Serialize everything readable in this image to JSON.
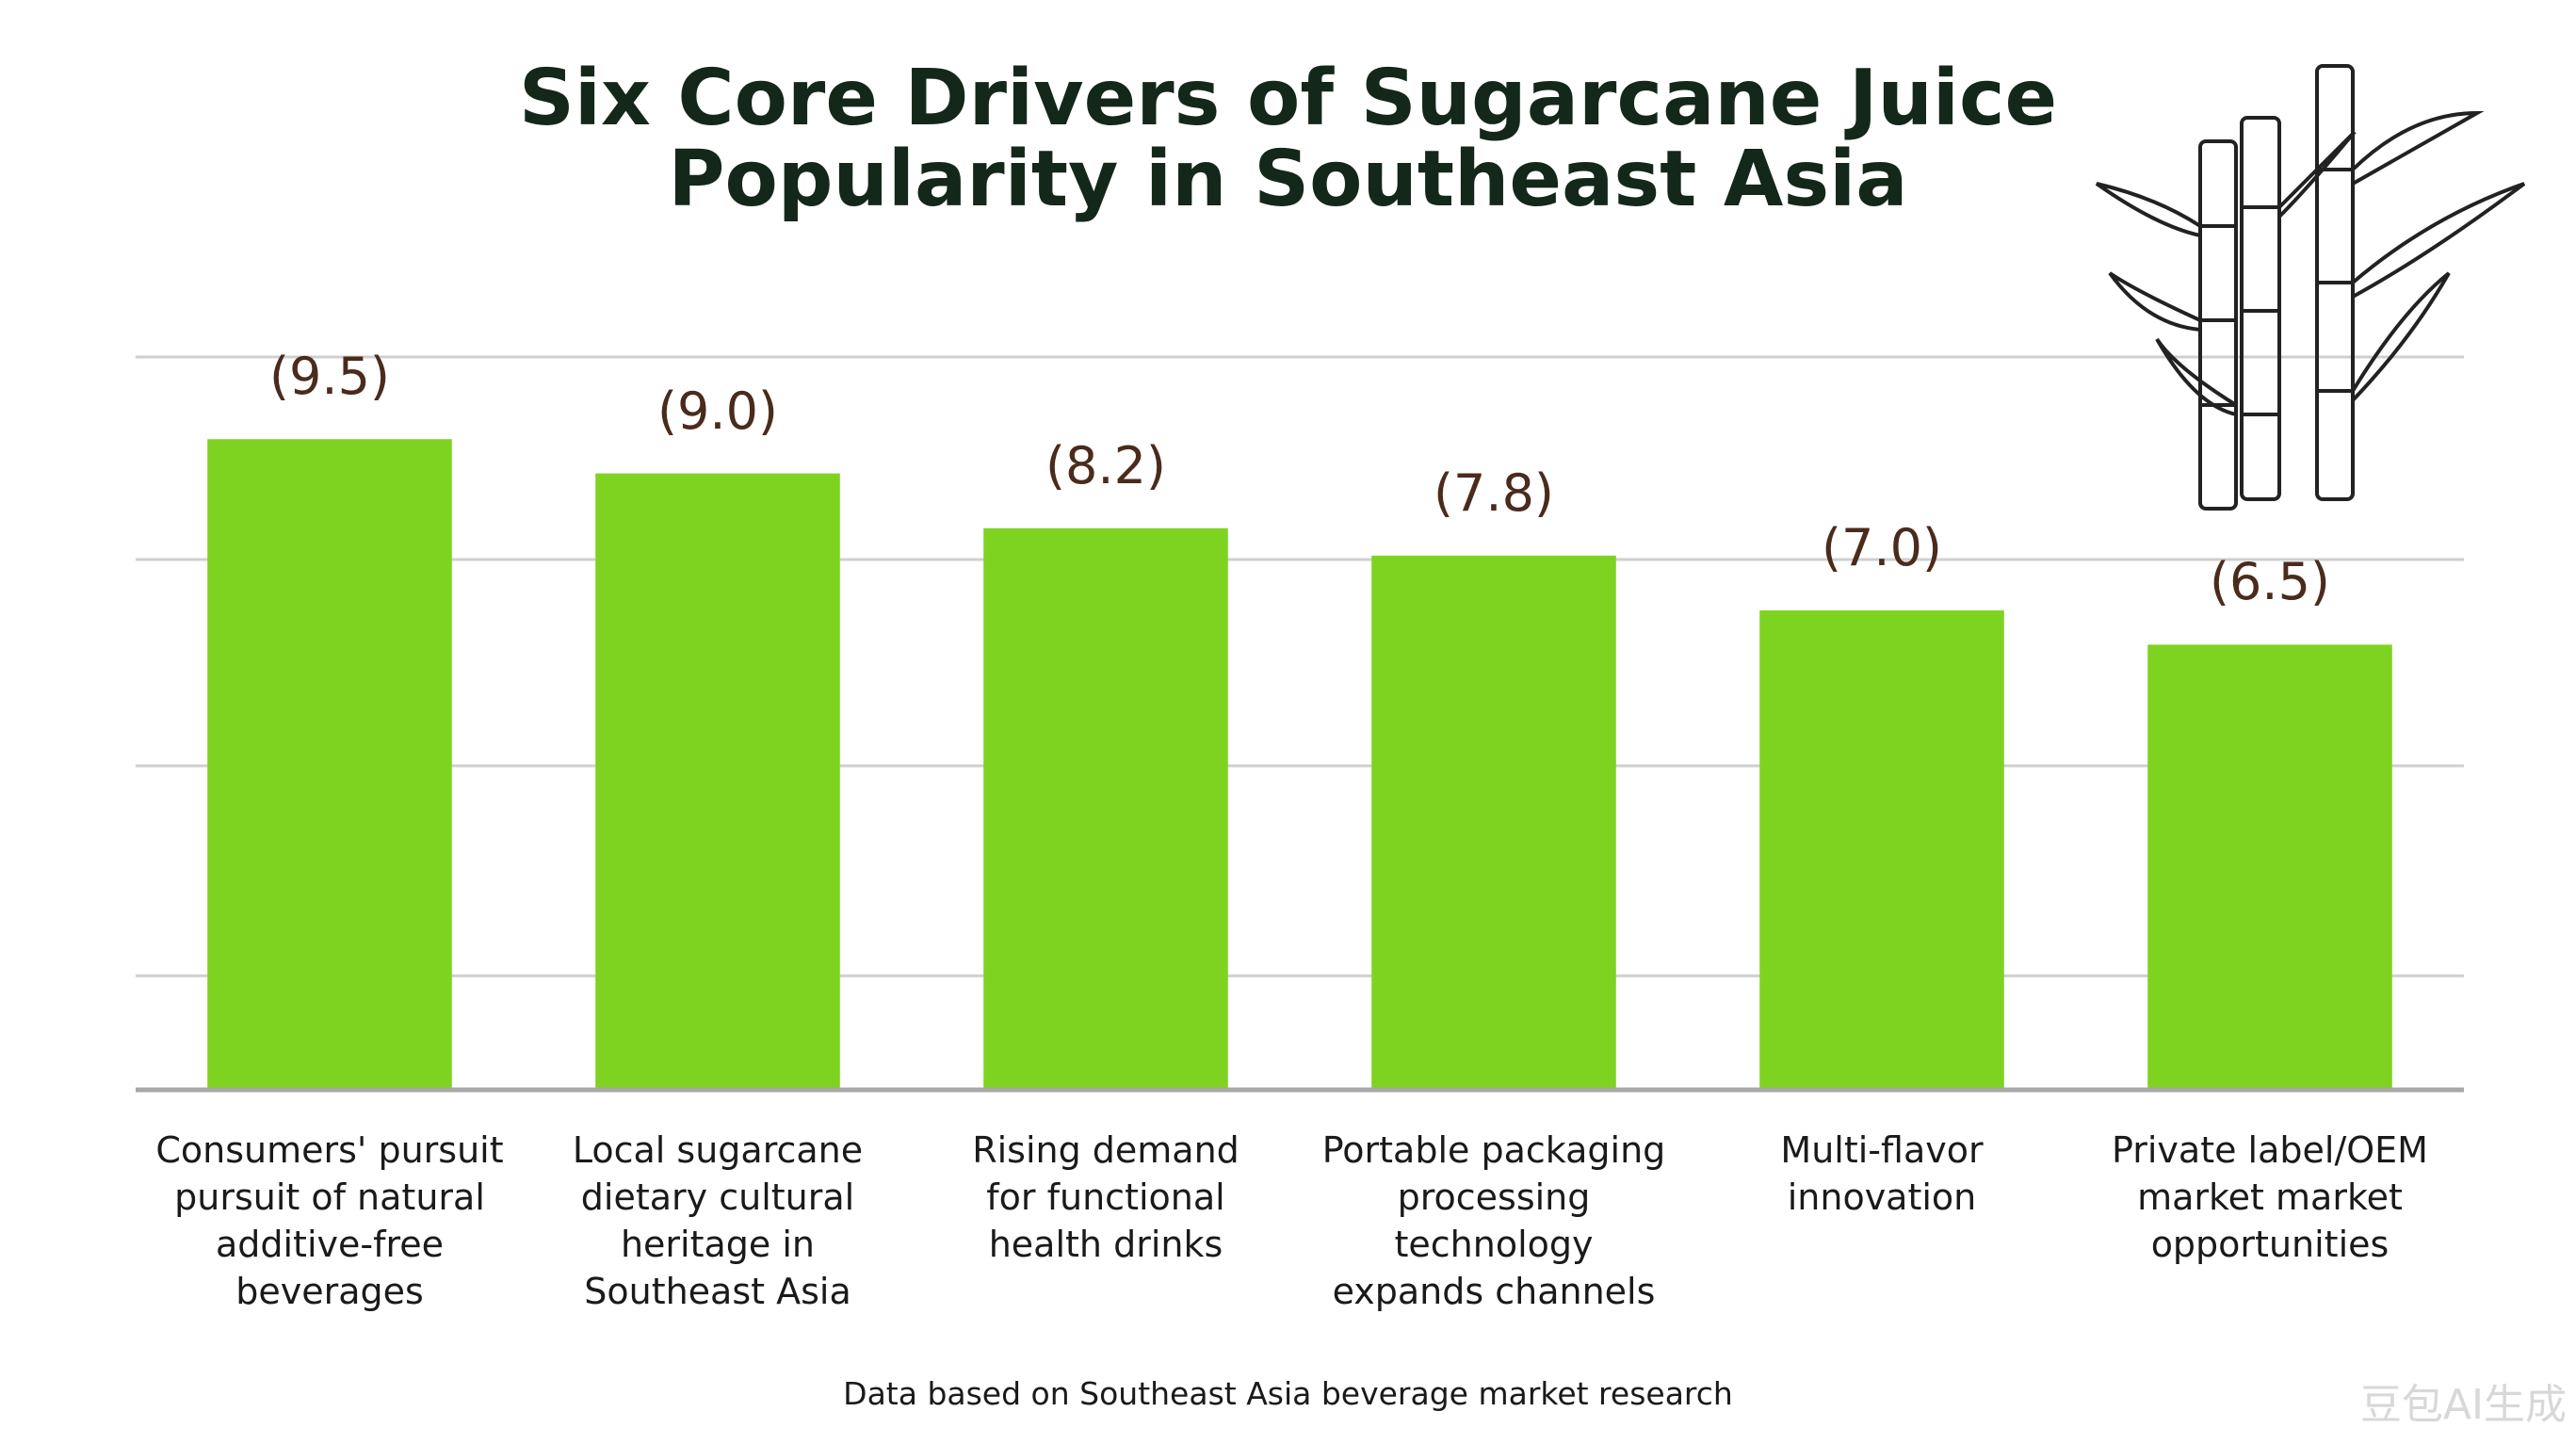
{
  "chart_data": {
    "type": "bar",
    "title": "Six Core Drivers of Sugarcane Juice\nPopularity in Southeast Asia",
    "categories": [
      "Consumers' pursuit\npursuit of natural\nadditive-free\nbeverages",
      "Local sugarcane\ndietary cultural\nheritage in\nSoutheast Asia",
      "Rising demand\nfor functional\nhealth drinks",
      "Portable packaging\nprocessing\ntechnology\nexpands channels",
      "Multi-flavor\ninnovation",
      "Private label/OEM\nmarket market\nopportunities"
    ],
    "values": [
      9.5,
      9.0,
      8.2,
      7.8,
      7.0,
      6.5
    ],
    "value_labels": [
      "(9.5)",
      "(9.0)",
      "(8.2)",
      "(7.8)",
      "(7.0)",
      "(6.5)"
    ],
    "color": "#7ed321",
    "ylim": [
      0,
      10.7
    ],
    "source": "Data based on Southeast Asia beverage market research",
    "watermark": "豆包AI生成"
  }
}
